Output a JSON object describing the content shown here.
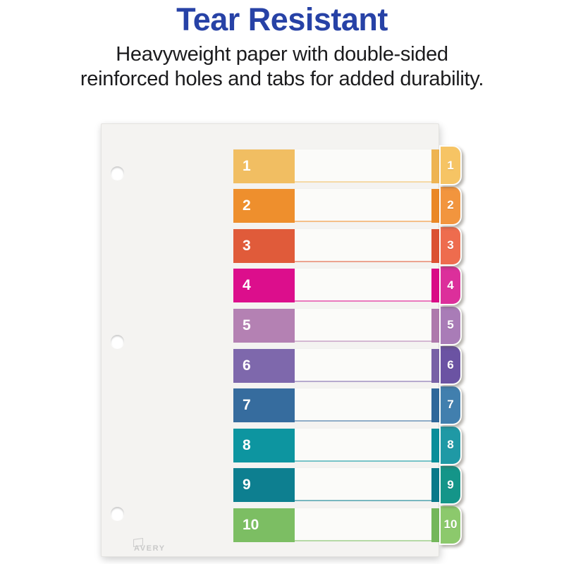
{
  "header": {
    "title": "Tear Resistant",
    "subtitle_line1": "Heavyweight paper with double-sided",
    "subtitle_line2": "reinforced holes and tabs for added durability."
  },
  "colors": {
    "title_blue": "#2742A6",
    "page_background": "#FFFFFF",
    "sheet_background": "#F4F3F1",
    "number_text": "#FFFFFF",
    "brand_gray": "#C9C9C9"
  },
  "divider": {
    "brand": "AVERY",
    "hole_count": 3,
    "tabs": [
      {
        "number": "1",
        "block_color": "#F1BE62",
        "strip_color": "#EEB452",
        "tab_color": "#F6C464"
      },
      {
        "number": "2",
        "block_color": "#EE8F2D",
        "strip_color": "#EA8826",
        "tab_color": "#F2953E"
      },
      {
        "number": "3",
        "block_color": "#E05B3A",
        "strip_color": "#DB5233",
        "tab_color": "#EE6C4E"
      },
      {
        "number": "4",
        "block_color": "#DC0E8C",
        "strip_color": "#D90B86",
        "tab_color": "#DC2F9B"
      },
      {
        "number": "5",
        "block_color": "#B481B3",
        "strip_color": "#AE79AC",
        "tab_color": "#A97CB7"
      },
      {
        "number": "6",
        "block_color": "#7E68AC",
        "strip_color": "#7861A6",
        "tab_color": "#6B53A3"
      },
      {
        "number": "7",
        "block_color": "#366C9E",
        "strip_color": "#2F679A",
        "tab_color": "#417FAE"
      },
      {
        "number": "8",
        "block_color": "#0D95A0",
        "strip_color": "#0A8E9A",
        "tab_color": "#1F99A5"
      },
      {
        "number": "9",
        "block_color": "#0D7F90",
        "strip_color": "#0A798A",
        "tab_color": "#149589"
      },
      {
        "number": "10",
        "block_color": "#7CBE63",
        "strip_color": "#74B75B",
        "tab_color": "#8CC96C"
      }
    ]
  }
}
